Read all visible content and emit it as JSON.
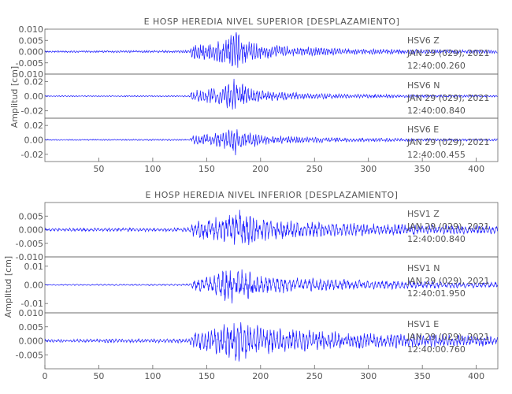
{
  "chart_data": [
    {
      "type": "line",
      "title": "E HOSP HEREDIA NIVEL SUPERIOR [DESPLAZAMIENTO]",
      "ylabel": "Amplitud [cm]",
      "xlim": [
        0,
        420
      ],
      "xticks": [
        50,
        100,
        150,
        200,
        250,
        300,
        350,
        400
      ],
      "line_color": "#1a1aff",
      "traces": [
        {
          "station": "HSV6",
          "component": "Z",
          "date": "JAN 29 (029), 2021",
          "time": "12:40:00.260",
          "ylim": [
            -0.01,
            0.01
          ],
          "yticks": [
            0.01,
            0.005,
            0.0,
            -0.005,
            -0.01
          ],
          "ytick_labels": [
            "0.010",
            "0.005",
            "0.000",
            "-0.005",
            "-0.010"
          ],
          "envelope": [
            [
              0,
              0.0004
            ],
            [
              134,
              0.0006
            ],
            [
              137,
              0.0035
            ],
            [
              160,
              0.005
            ],
            [
              172,
              0.0075
            ],
            [
              178,
              0.0095
            ],
            [
              185,
              0.006
            ],
            [
              200,
              0.0035
            ],
            [
              230,
              0.0025
            ],
            [
              280,
              0.0015
            ],
            [
              350,
              0.001
            ],
            [
              420,
              0.0008
            ]
          ],
          "period": 2.4
        },
        {
          "station": "HSV6",
          "component": "N",
          "date": "JAN 29 (029), 2021",
          "time": "12:40:00.840",
          "ylim": [
            -0.03,
            0.03
          ],
          "yticks": [
            0.02,
            0.0,
            -0.02
          ],
          "ytick_labels": [
            "0.02",
            "0.00",
            "-0.02"
          ],
          "envelope": [
            [
              0,
              0.0008
            ],
            [
              134,
              0.001
            ],
            [
              137,
              0.009
            ],
            [
              160,
              0.012
            ],
            [
              170,
              0.02
            ],
            [
              178,
              0.026
            ],
            [
              185,
              0.016
            ],
            [
              200,
              0.008
            ],
            [
              230,
              0.005
            ],
            [
              280,
              0.003
            ],
            [
              350,
              0.002
            ],
            [
              420,
              0.0015
            ]
          ],
          "period": 2.6
        },
        {
          "station": "HSV6",
          "component": "E",
          "date": "JAN 29 (029), 2021",
          "time": "12:40:00.455",
          "ylim": [
            -0.03,
            0.03
          ],
          "yticks": [
            0.02,
            0.0,
            -0.02
          ],
          "ytick_labels": [
            "0.02",
            "0.00",
            "-0.02"
          ],
          "envelope": [
            [
              0,
              0.0008
            ],
            [
              134,
              0.0012
            ],
            [
              137,
              0.007
            ],
            [
              160,
              0.01
            ],
            [
              172,
              0.018
            ],
            [
              178,
              0.023
            ],
            [
              185,
              0.014
            ],
            [
              200,
              0.008
            ],
            [
              230,
              0.005
            ],
            [
              280,
              0.003
            ],
            [
              350,
              0.002
            ],
            [
              420,
              0.0015
            ]
          ],
          "period": 2.5
        }
      ]
    },
    {
      "type": "line",
      "title": "E HOSP HEREDIA NIVEL INFERIOR [DESPLAZAMIENTO]",
      "ylabel": "Amplitud [cm]",
      "xlim": [
        0,
        420
      ],
      "xticks": [
        0,
        50,
        100,
        150,
        200,
        250,
        300,
        350,
        400
      ],
      "line_color": "#1a1aff",
      "traces": [
        {
          "station": "HSV1",
          "component": "Z",
          "date": "JAN 29 (029), 2021",
          "time": "12:40:00.840",
          "ylim": [
            -0.01,
            0.01
          ],
          "yticks": [
            0.005,
            0.0,
            -0.005,
            -0.01
          ],
          "ytick_labels": [
            "0.005",
            "0.000",
            "-0.005",
            "-0.010"
          ],
          "envelope": [
            [
              0,
              0.0006
            ],
            [
              134,
              0.0008
            ],
            [
              137,
              0.003
            ],
            [
              160,
              0.005
            ],
            [
              172,
              0.007
            ],
            [
              178,
              0.0085
            ],
            [
              190,
              0.006
            ],
            [
              210,
              0.004
            ],
            [
              250,
              0.003
            ],
            [
              300,
              0.0025
            ],
            [
              350,
              0.002
            ],
            [
              420,
              0.0015
            ]
          ],
          "period": 3.2
        },
        {
          "station": "HSV1",
          "component": "N",
          "date": "JAN 29 (029), 2021",
          "time": "12:40:01.950",
          "ylim": [
            -0.015,
            0.015
          ],
          "yticks": [
            0.01,
            0.0,
            -0.01
          ],
          "ytick_labels": [
            "0.01",
            "0.00",
            "-0.01"
          ],
          "envelope": [
            [
              0,
              0.0003
            ],
            [
              134,
              0.0005
            ],
            [
              137,
              0.003
            ],
            [
              155,
              0.005
            ],
            [
              165,
              0.008
            ],
            [
              172,
              0.011
            ],
            [
              182,
              0.009
            ],
            [
              200,
              0.006
            ],
            [
              230,
              0.004
            ],
            [
              280,
              0.003
            ],
            [
              350,
              0.002
            ],
            [
              420,
              0.0015
            ]
          ],
          "period": 3.6
        },
        {
          "station": "HSV1",
          "component": "E",
          "date": "JAN 29 (029), 2021",
          "time": "12:40:00.760",
          "ylim": [
            -0.01,
            0.01
          ],
          "yticks": [
            0.01,
            0.005,
            0.0,
            -0.005
          ],
          "ytick_labels": [
            "0.010",
            "0.005",
            "0.000",
            "-0.005"
          ],
          "envelope": [
            [
              0,
              0.0006
            ],
            [
              134,
              0.0008
            ],
            [
              137,
              0.003
            ],
            [
              160,
              0.005
            ],
            [
              170,
              0.007
            ],
            [
              175,
              0.0095
            ],
            [
              185,
              0.007
            ],
            [
              205,
              0.005
            ],
            [
              240,
              0.004
            ],
            [
              300,
              0.003
            ],
            [
              350,
              0.0025
            ],
            [
              420,
              0.002
            ]
          ],
          "period": 3.0
        }
      ]
    }
  ]
}
